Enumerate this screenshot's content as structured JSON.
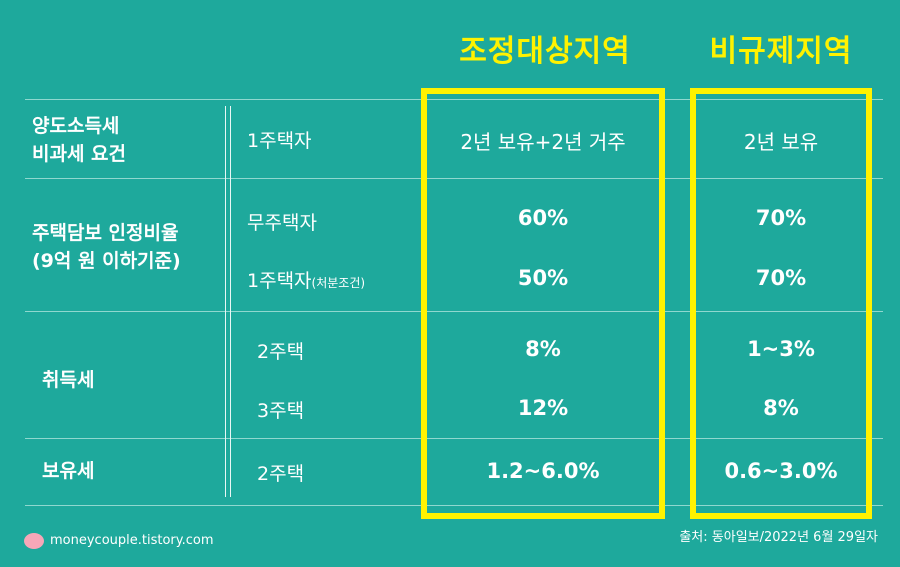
{
  "headers": {
    "regulated": "조정대상지역",
    "non_regulated": "비규제지역"
  },
  "rows": {
    "transfer_tax": {
      "label_line1": "양도소득세",
      "label_line2": "비과세 요건",
      "sub": "1주택자",
      "regulated": "2년 보유+2년 거주",
      "non_regulated": "2년 보유"
    },
    "ltv": {
      "label_line1": "주택담보 인정비율",
      "label_line2": "(9억 원 이하기준)",
      "sub1": "무주택자",
      "sub2": "1주택자",
      "sub2_note": "(처분조건)",
      "regulated1": "60%",
      "non_regulated1": "70%",
      "regulated2": "50%",
      "non_regulated2": "70%"
    },
    "acquisition_tax": {
      "label": "취득세",
      "sub1": "2주택",
      "sub2": "3주택",
      "regulated1": "8%",
      "non_regulated1": "1~3%",
      "regulated2": "12%",
      "non_regulated2": "8%"
    },
    "holding_tax": {
      "label": "보유세",
      "sub": "2주택",
      "regulated": "1.2~6.0%",
      "non_regulated": "0.6~3.0%"
    }
  },
  "footer": {
    "blog": "moneycouple.tistory.com",
    "source": "출처: 동아일보/2022년 6월 29일자"
  },
  "colors": {
    "background": "#1ea99c",
    "highlight": "#fff200",
    "text": "#ffffff"
  }
}
